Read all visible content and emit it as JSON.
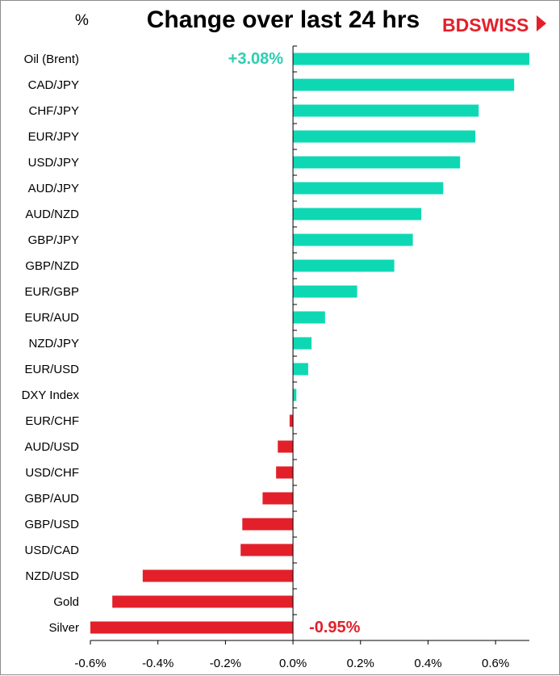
{
  "chart_data": {
    "type": "bar",
    "orientation": "horizontal",
    "title": "Change over last 24 hrs",
    "unit_label": "%",
    "categories": [
      "Oil (Brent)",
      "CAD/JPY",
      "CHF/JPY",
      "EUR/JPY",
      "USD/JPY",
      "AUD/JPY",
      "AUD/NZD",
      "GBP/JPY",
      "GBP/NZD",
      "EUR/GBP",
      "EUR/AUD",
      "NZD/JPY",
      "EUR/USD",
      "DXY Index",
      "EUR/CHF",
      "AUD/USD",
      "USD/CHF",
      "GBP/AUD",
      "GBP/USD",
      "USD/CAD",
      "NZD/USD",
      "Gold",
      "Silver"
    ],
    "values": [
      0.7,
      0.655,
      0.55,
      0.54,
      0.495,
      0.445,
      0.38,
      0.355,
      0.3,
      0.19,
      0.095,
      0.055,
      0.045,
      0.01,
      -0.01,
      -0.045,
      -0.05,
      -0.09,
      -0.15,
      -0.155,
      -0.445,
      -0.535,
      -0.6
    ],
    "xlim": [
      -0.6,
      0.7
    ],
    "x_ticks": [
      -0.6,
      -0.4,
      -0.2,
      0.0,
      0.2,
      0.4,
      0.6
    ],
    "x_tick_labels": [
      "-0.6%",
      "-0.4%",
      "-0.2%",
      "0.0%",
      "0.2%",
      "0.4%",
      "0.6%"
    ],
    "grid": false,
    "legend": "none",
    "annotations": [
      {
        "text": "+3.08%",
        "category": "Oil (Brent)",
        "color": "#2ecdb0"
      },
      {
        "text": "-0.95%",
        "category": "Silver",
        "color": "#e3202a"
      }
    ],
    "colors": {
      "positive": "#0ed8b4",
      "negative": "#e3202a"
    }
  },
  "logo": {
    "bd": "BD",
    "swiss": "SWISS",
    "color": "#e3202a"
  }
}
